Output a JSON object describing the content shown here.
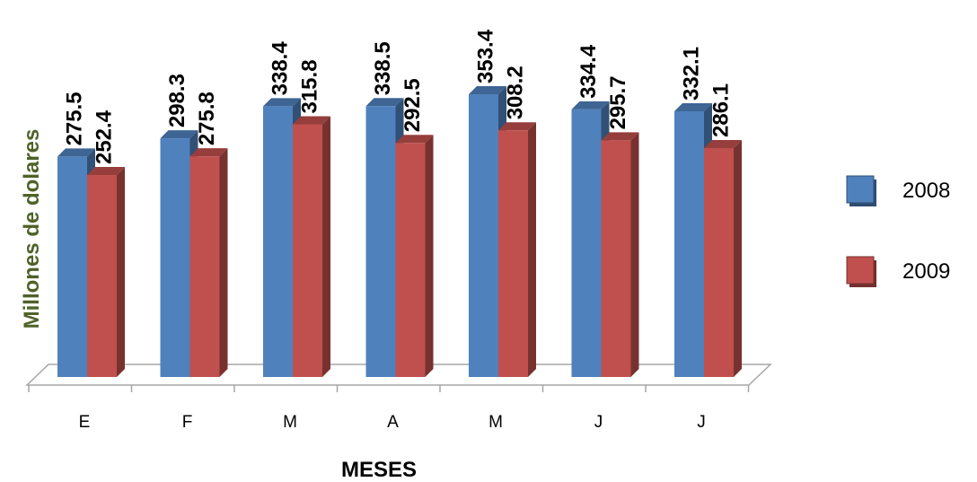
{
  "chart_data": {
    "type": "bar",
    "categories": [
      "E",
      "F",
      "M",
      "A",
      "M",
      "J",
      "J"
    ],
    "series": [
      {
        "name": "2008",
        "values": [
          275.5,
          298.3,
          338.4,
          338.5,
          353.4,
          334.4,
          332.1
        ],
        "labels": [
          "275.5",
          "298.3",
          "338.4",
          "338.5",
          "353.4",
          "334.4",
          "332.1"
        ],
        "color": "#4f81bd"
      },
      {
        "name": "2009",
        "values": [
          252.4,
          275.8,
          315.8,
          292.5,
          308.2,
          295.7,
          286.1
        ],
        "labels": [
          "252.4",
          "275.8",
          "315.8",
          "292.5",
          "308.2",
          "295.7",
          "286.1"
        ],
        "color": "#c0504d"
      }
    ],
    "xlabel": "MESES",
    "ylabel": "Millones de dolares",
    "ylim": [
      0,
      400
    ],
    "legend_position": "right",
    "grid": false,
    "ylabel_color": "#4f6228"
  }
}
